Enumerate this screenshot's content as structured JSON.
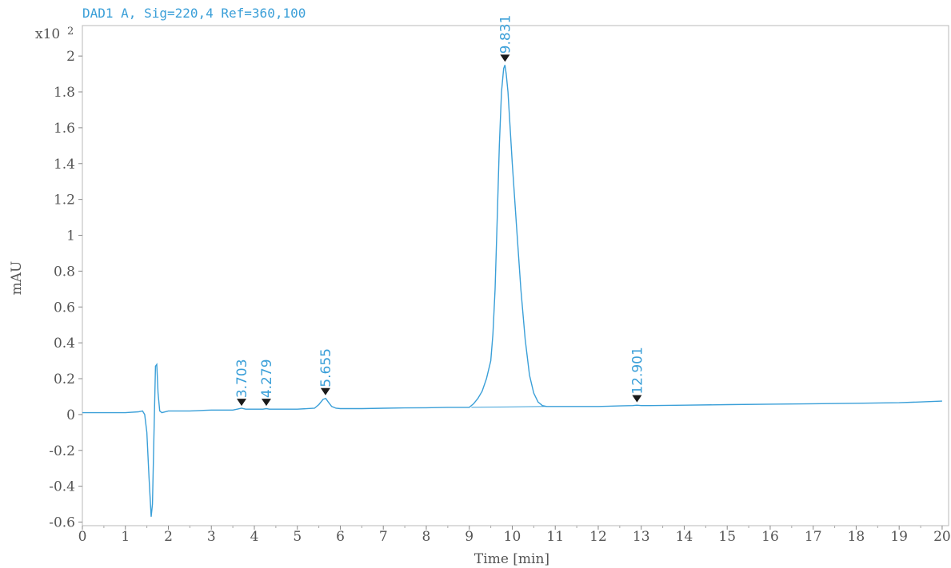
{
  "chart_data": {
    "type": "line",
    "title": "DAD1 A, Sig=220,4 Ref=360,100",
    "xlabel": "Time [min]",
    "ylabel": "mAU",
    "y_multiplier": "x10",
    "y_multiplier_exp": "2",
    "xlim": [
      0,
      20.15
    ],
    "ylim": [
      -0.62,
      2.17
    ],
    "x_ticks": [
      0,
      1,
      2,
      3,
      4,
      5,
      6,
      7,
      8,
      9,
      10,
      11,
      12,
      13,
      14,
      15,
      16,
      17,
      18,
      19,
      20
    ],
    "x_tick_labels": [
      "0",
      "1",
      "2",
      "3",
      "4",
      "5",
      "6",
      "7",
      "8",
      "9",
      "10",
      "11",
      "12",
      "13",
      "14",
      "15",
      "16",
      "17",
      "18",
      "19",
      "20"
    ],
    "y_ticks": [
      -0.6,
      -0.4,
      -0.2,
      0,
      0.2,
      0.4,
      0.6,
      0.8,
      1,
      1.2,
      1.4,
      1.6,
      1.8,
      2
    ],
    "y_tick_labels": [
      "-0.6",
      "-0.4",
      "-0.2",
      "0",
      "0.2",
      "0.4",
      "0.6",
      "0.8",
      "1",
      "1.2",
      "1.4",
      "1.6",
      "1.8",
      "2"
    ],
    "grid": false,
    "line_color": "#3a9fd8",
    "series": [
      {
        "x": [
          0,
          0.5,
          1.0,
          1.3,
          1.4,
          1.45,
          1.5,
          1.55,
          1.6,
          1.63,
          1.67,
          1.7,
          1.73,
          1.76,
          1.8,
          1.85,
          2.0,
          2.5,
          3.0,
          3.5,
          3.6,
          3.7,
          3.8,
          3.9,
          4.1,
          4.2,
          4.28,
          4.35,
          4.5,
          5.0,
          5.4,
          5.5,
          5.6,
          5.66,
          5.72,
          5.8,
          5.9,
          6.0,
          6.5,
          7.0,
          7.5,
          8.0,
          8.5,
          9.0,
          9.1,
          9.2,
          9.3,
          9.4,
          9.5,
          9.55,
          9.6,
          9.65,
          9.7,
          9.75,
          9.8,
          9.83,
          9.86,
          9.9,
          9.95,
          10.0,
          10.1,
          10.2,
          10.3,
          10.4,
          10.5,
          10.6,
          10.7,
          10.8,
          11.0,
          11.5,
          12.0,
          12.5,
          12.8,
          12.9,
          13.0,
          13.2,
          14.0,
          15.0,
          16.0,
          17.0,
          18.0,
          19.0,
          20.0
        ],
        "y": [
          0.01,
          0.01,
          0.01,
          0.015,
          0.02,
          0.0,
          -0.1,
          -0.35,
          -0.57,
          -0.5,
          -0.05,
          0.27,
          0.28,
          0.12,
          0.02,
          0.01,
          0.02,
          0.02,
          0.025,
          0.025,
          0.03,
          0.035,
          0.03,
          0.03,
          0.03,
          0.03,
          0.033,
          0.03,
          0.03,
          0.03,
          0.035,
          0.055,
          0.085,
          0.09,
          0.07,
          0.045,
          0.035,
          0.033,
          0.033,
          0.035,
          0.037,
          0.038,
          0.04,
          0.04,
          0.06,
          0.09,
          0.13,
          0.2,
          0.3,
          0.45,
          0.7,
          1.1,
          1.5,
          1.8,
          1.93,
          1.95,
          1.9,
          1.8,
          1.6,
          1.4,
          1.05,
          0.7,
          0.42,
          0.22,
          0.12,
          0.07,
          0.05,
          0.045,
          0.045,
          0.045,
          0.045,
          0.048,
          0.05,
          0.052,
          0.05,
          0.05,
          0.052,
          0.055,
          0.058,
          0.06,
          0.063,
          0.066,
          0.075
        ]
      }
    ],
    "peaks": [
      {
        "x": 3.703,
        "y": 0.03,
        "label": "3.703"
      },
      {
        "x": 4.279,
        "y": 0.03,
        "label": "4.279"
      },
      {
        "x": 5.655,
        "y": 0.09,
        "label": "5.655"
      },
      {
        "x": 9.831,
        "y": 1.95,
        "label": "9.831"
      },
      {
        "x": 12.901,
        "y": 0.05,
        "label": "12.901"
      }
    ]
  }
}
